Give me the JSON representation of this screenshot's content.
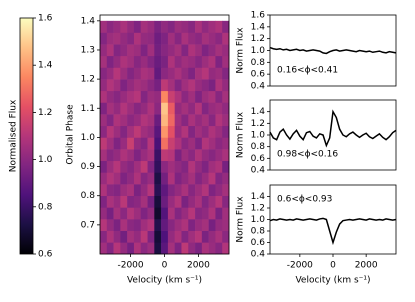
{
  "chart_data": [
    {
      "type": "colorbar",
      "label": "Normalised Flux",
      "colormap": "magma",
      "ylim": [
        0.6,
        1.6
      ],
      "yticks": [
        0.6,
        0.8,
        {
          "value": 1,
          "label": "1.0"
        },
        1.2,
        1.4,
        1.6
      ]
    },
    {
      "type": "heatmap",
      "colormap": "magma",
      "xlabel": "Velocity (km s⁻¹)",
      "ylabel": "Orbital Phase",
      "xlim": [
        -3800,
        3800
      ],
      "ylim": [
        0.6,
        1.42
      ],
      "xticks": [
        -2000,
        0,
        2000
      ],
      "yticks": [
        0.7,
        0.8,
        0.9,
        {
          "value": 1,
          "label": "1.0"
        },
        1.1,
        1.2,
        1.3,
        1.4
      ],
      "x": [
        -3600,
        -3200,
        -2800,
        -2400,
        -2000,
        -1600,
        -1200,
        -800,
        -400,
        0,
        400,
        800,
        1200,
        1600,
        2000,
        2400,
        2800,
        3200,
        3600
      ],
      "y": [
        0.62,
        0.66,
        0.7,
        0.74,
        0.78,
        0.82,
        0.86,
        0.9,
        0.94,
        0.98,
        1.02,
        1.06,
        1.1,
        1.14,
        1.18,
        1.22,
        1.26,
        1.3,
        1.34,
        1.38
      ],
      "z": [
        [
          1.05,
          0.98,
          1.1,
          1.02,
          0.95,
          1.08,
          1.0,
          1.04,
          0.72,
          0.88,
          1.06,
          0.97,
          1.12,
          1.01,
          0.96,
          1.07,
          1.03,
          0.99,
          1.09
        ],
        [
          0.99,
          1.08,
          1.01,
          0.94,
          1.06,
          1.02,
          1.11,
          0.97,
          0.7,
          0.85,
          1.02,
          1.08,
          0.98,
          1.05,
          1.1,
          0.96,
          1.02,
          1.07,
          1.0
        ],
        [
          1.1,
          1.02,
          0.96,
          1.07,
          1.0,
          0.98,
          1.05,
          1.09,
          0.74,
          0.9,
          0.99,
          1.04,
          1.08,
          0.97,
          1.03,
          1.06,
          0.95,
          1.02,
          1.04
        ],
        [
          1.02,
          0.95,
          1.06,
          1.0,
          1.09,
          1.04,
          0.97,
          1.02,
          0.68,
          0.86,
          1.07,
          0.98,
          1.03,
          1.1,
          0.99,
          1.01,
          1.08,
          0.96,
          1.05
        ],
        [
          0.97,
          1.07,
          1.03,
          1.11,
          0.98,
          1.0,
          1.06,
          0.95,
          0.71,
          0.92,
          1.03,
          1.09,
          0.96,
          1.02,
          1.07,
          0.98,
          1.04,
          1.1,
          0.99
        ],
        [
          1.08,
          1.0,
          0.98,
          1.04,
          1.07,
          0.96,
          1.02,
          1.1,
          0.76,
          0.89,
          0.98,
          1.02,
          1.07,
          0.99,
          1.04,
          1.09,
          0.97,
          1.01,
          1.06
        ],
        [
          1.03,
          1.09,
          1.05,
          0.97,
          1.01,
          1.08,
          0.99,
          1.03,
          0.73,
          0.94,
          1.08,
          0.97,
          1.01,
          1.06,
          0.98,
          1.03,
          1.1,
          0.98,
          1.02
        ],
        [
          0.96,
          1.04,
          1.1,
          1.02,
          0.99,
          1.05,
          1.12,
          0.98,
          0.78,
          1.0,
          1.05,
          1.01,
          0.98,
          1.09,
          1.02,
          0.97,
          1.05,
          1.08,
          0.95
        ],
        [
          1.06,
          0.99,
          1.02,
          1.08,
          1.04,
          0.97,
          1.03,
          1.07,
          0.8,
          1.12,
          1.1,
          0.96,
          1.04,
          1.0,
          1.08,
          1.02,
          0.99,
          1.03,
          1.07
        ],
        [
          1.12,
          1.05,
          0.97,
          1.03,
          1.15,
          1.02,
          0.98,
          1.1,
          0.84,
          1.3,
          1.15,
          1.08,
          1.0,
          1.04,
          0.97,
          1.09,
          1.05,
          1.0,
          1.03
        ],
        [
          1.0,
          1.1,
          1.04,
          0.98,
          1.06,
          1.12,
          1.05,
          1.02,
          0.88,
          1.38,
          1.22,
          1.03,
          1.09,
          0.98,
          1.05,
          1.01,
          1.08,
          1.04,
          0.98
        ],
        [
          1.04,
          0.98,
          1.08,
          1.05,
          1.0,
          1.03,
          1.09,
          1.06,
          0.92,
          1.45,
          1.28,
          1.05,
          0.99,
          1.07,
          1.02,
          1.06,
          0.99,
          1.09,
          1.04
        ],
        [
          0.97,
          1.06,
          1.02,
          1.09,
          1.04,
          0.99,
          1.02,
          1.08,
          1.0,
          1.48,
          1.25,
          1.02,
          1.06,
          1.01,
          1.09,
          0.98,
          1.03,
          1.05,
          1.01
        ],
        [
          1.08,
          1.02,
          0.99,
          1.03,
          1.07,
          1.1,
          0.98,
          1.04,
          1.02,
          1.35,
          1.15,
          1.08,
          1.0,
          1.05,
          0.97,
          1.04,
          1.07,
          0.99,
          1.06
        ],
        [
          1.02,
          1.09,
          1.05,
          0.97,
          1.02,
          1.06,
          1.04,
          1.0,
          0.95,
          1.12,
          1.06,
          0.98,
          1.05,
          1.09,
          1.03,
          1.0,
          0.96,
          1.08,
          1.02
        ],
        [
          0.99,
          1.03,
          1.1,
          1.04,
          0.98,
          1.02,
          1.07,
          1.05,
          0.9,
          1.0,
          1.03,
          1.07,
          1.02,
          0.97,
          1.06,
          1.1,
          1.02,
          1.04,
          0.98
        ],
        [
          1.06,
          0.97,
          1.02,
          1.08,
          1.05,
          0.99,
          1.03,
          0.98,
          0.92,
          0.96,
          1.08,
          1.01,
          1.05,
          1.03,
          0.99,
          1.04,
          1.08,
          0.97,
          1.05
        ],
        [
          1.02,
          1.08,
          0.98,
          1.01,
          1.06,
          1.04,
          0.97,
          1.05,
          0.94,
          0.99,
          1.02,
          1.06,
          0.98,
          1.08,
          1.04,
          0.97,
          1.01,
          1.06,
          1.03
        ],
        [
          0.98,
          1.04,
          1.06,
          1.02,
          0.99,
          1.08,
          1.02,
          1.01,
          0.93,
          0.97,
          1.05,
          0.99,
          1.07,
          1.02,
          1.0,
          1.06,
          1.03,
          1.0,
          1.08
        ],
        [
          1.05,
          1.0,
          1.03,
          1.07,
          1.02,
          0.97,
          1.06,
          1.03,
          0.96,
          1.01,
          0.98,
          1.04,
          1.02,
          0.99,
          1.07,
          1.01,
          1.05,
          1.08,
          0.99
        ]
      ]
    },
    {
      "type": "line",
      "ylabel": "Norm Flux",
      "annotation": "0.16<ϕ<0.41",
      "color": "#000000",
      "xlim": [
        -3800,
        3800
      ],
      "ylim": [
        0.4,
        1.6
      ],
      "yticks": [
        0.4,
        0.6,
        0.8,
        {
          "value": 1,
          "label": "1.0"
        },
        1.2,
        1.4,
        1.6
      ],
      "x": [
        -3800,
        -3600,
        -3400,
        -3200,
        -3000,
        -2800,
        -2600,
        -2400,
        -2200,
        -2000,
        -1800,
        -1600,
        -1400,
        -1200,
        -1000,
        -800,
        -600,
        -400,
        -200,
        0,
        200,
        400,
        600,
        800,
        1000,
        1200,
        1400,
        1600,
        1800,
        2000,
        2200,
        2400,
        2600,
        2800,
        3000,
        3200,
        3400,
        3600,
        3800
      ],
      "values": [
        1.05,
        1.03,
        1.02,
        1.03,
        1.01,
        1.02,
        1.0,
        1.01,
        1.02,
        1.0,
        1.01,
        0.99,
        1.0,
        1.01,
        1.0,
        0.99,
        0.96,
        0.95,
        0.98,
        1.0,
        1.01,
        0.99,
        1.0,
        1.01,
        1.0,
        0.99,
        0.98,
        1.0,
        0.99,
        0.98,
        0.99,
        0.97,
        0.98,
        0.99,
        0.97,
        0.96,
        0.98,
        0.97,
        0.96
      ]
    },
    {
      "type": "line",
      "ylabel": "Norm Flux",
      "annotation": "0.98<ϕ<0.16",
      "color": "#000000",
      "xlim": [
        -3800,
        3800
      ],
      "ylim": [
        0.4,
        1.6
      ],
      "yticks": [
        0.4,
        0.6,
        0.8,
        {
          "value": 1,
          "label": "1.0"
        },
        1.2,
        1.4
      ],
      "x": [
        -3800,
        -3600,
        -3400,
        -3200,
        -3000,
        -2800,
        -2600,
        -2400,
        -2200,
        -2000,
        -1800,
        -1600,
        -1400,
        -1200,
        -1000,
        -800,
        -600,
        -400,
        -200,
        0,
        200,
        400,
        600,
        800,
        1000,
        1200,
        1400,
        1600,
        1800,
        2000,
        2200,
        2400,
        2600,
        2800,
        3000,
        3200,
        3400,
        3600,
        3800
      ],
      "values": [
        1.05,
        0.95,
        0.92,
        1.05,
        1.1,
        1.0,
        0.93,
        1.02,
        1.08,
        0.98,
        0.92,
        1.04,
        1.06,
        0.98,
        0.95,
        1.02,
        1.0,
        0.82,
        0.95,
        1.4,
        1.3,
        1.1,
        1.0,
        0.97,
        1.02,
        1.05,
        1.0,
        0.96,
        1.0,
        1.03,
        0.97,
        0.94,
        0.98,
        1.02,
        0.96,
        0.92,
        0.97,
        1.04,
        1.08
      ]
    },
    {
      "type": "line",
      "ylabel": "Norm Flux",
      "annotation": "0.6<ϕ<0.93",
      "xlabel": "Velocity (km s⁻¹)",
      "color": "#000000",
      "xlim": [
        -3800,
        3800
      ],
      "ylim": [
        0.4,
        1.6
      ],
      "xticks": [
        -2000,
        0,
        2000
      ],
      "yticks": [
        0.4,
        0.6,
        0.8,
        {
          "value": 1,
          "label": "1.0"
        },
        1.2,
        1.4
      ],
      "x": [
        -3800,
        -3600,
        -3400,
        -3200,
        -3000,
        -2800,
        -2600,
        -2400,
        -2200,
        -2000,
        -1800,
        -1600,
        -1400,
        -1200,
        -1000,
        -800,
        -600,
        -400,
        -200,
        0,
        200,
        400,
        600,
        800,
        1000,
        1200,
        1400,
        1600,
        1800,
        2000,
        2200,
        2400,
        2600,
        2800,
        3000,
        3200,
        3400,
        3600,
        3800
      ],
      "values": [
        0.98,
        1.0,
        0.99,
        1.01,
        1.0,
        0.99,
        1.0,
        0.99,
        1.01,
        1.0,
        0.99,
        1.0,
        1.01,
        1.0,
        0.99,
        1.01,
        1.02,
        1.0,
        0.8,
        0.6,
        0.78,
        0.92,
        0.98,
        0.99,
        1.0,
        0.99,
        1.0,
        1.01,
        1.0,
        0.99,
        1.01,
        1.0,
        0.99,
        1.0,
        0.99,
        1.01,
        1.0,
        0.99,
        1.0
      ]
    }
  ]
}
